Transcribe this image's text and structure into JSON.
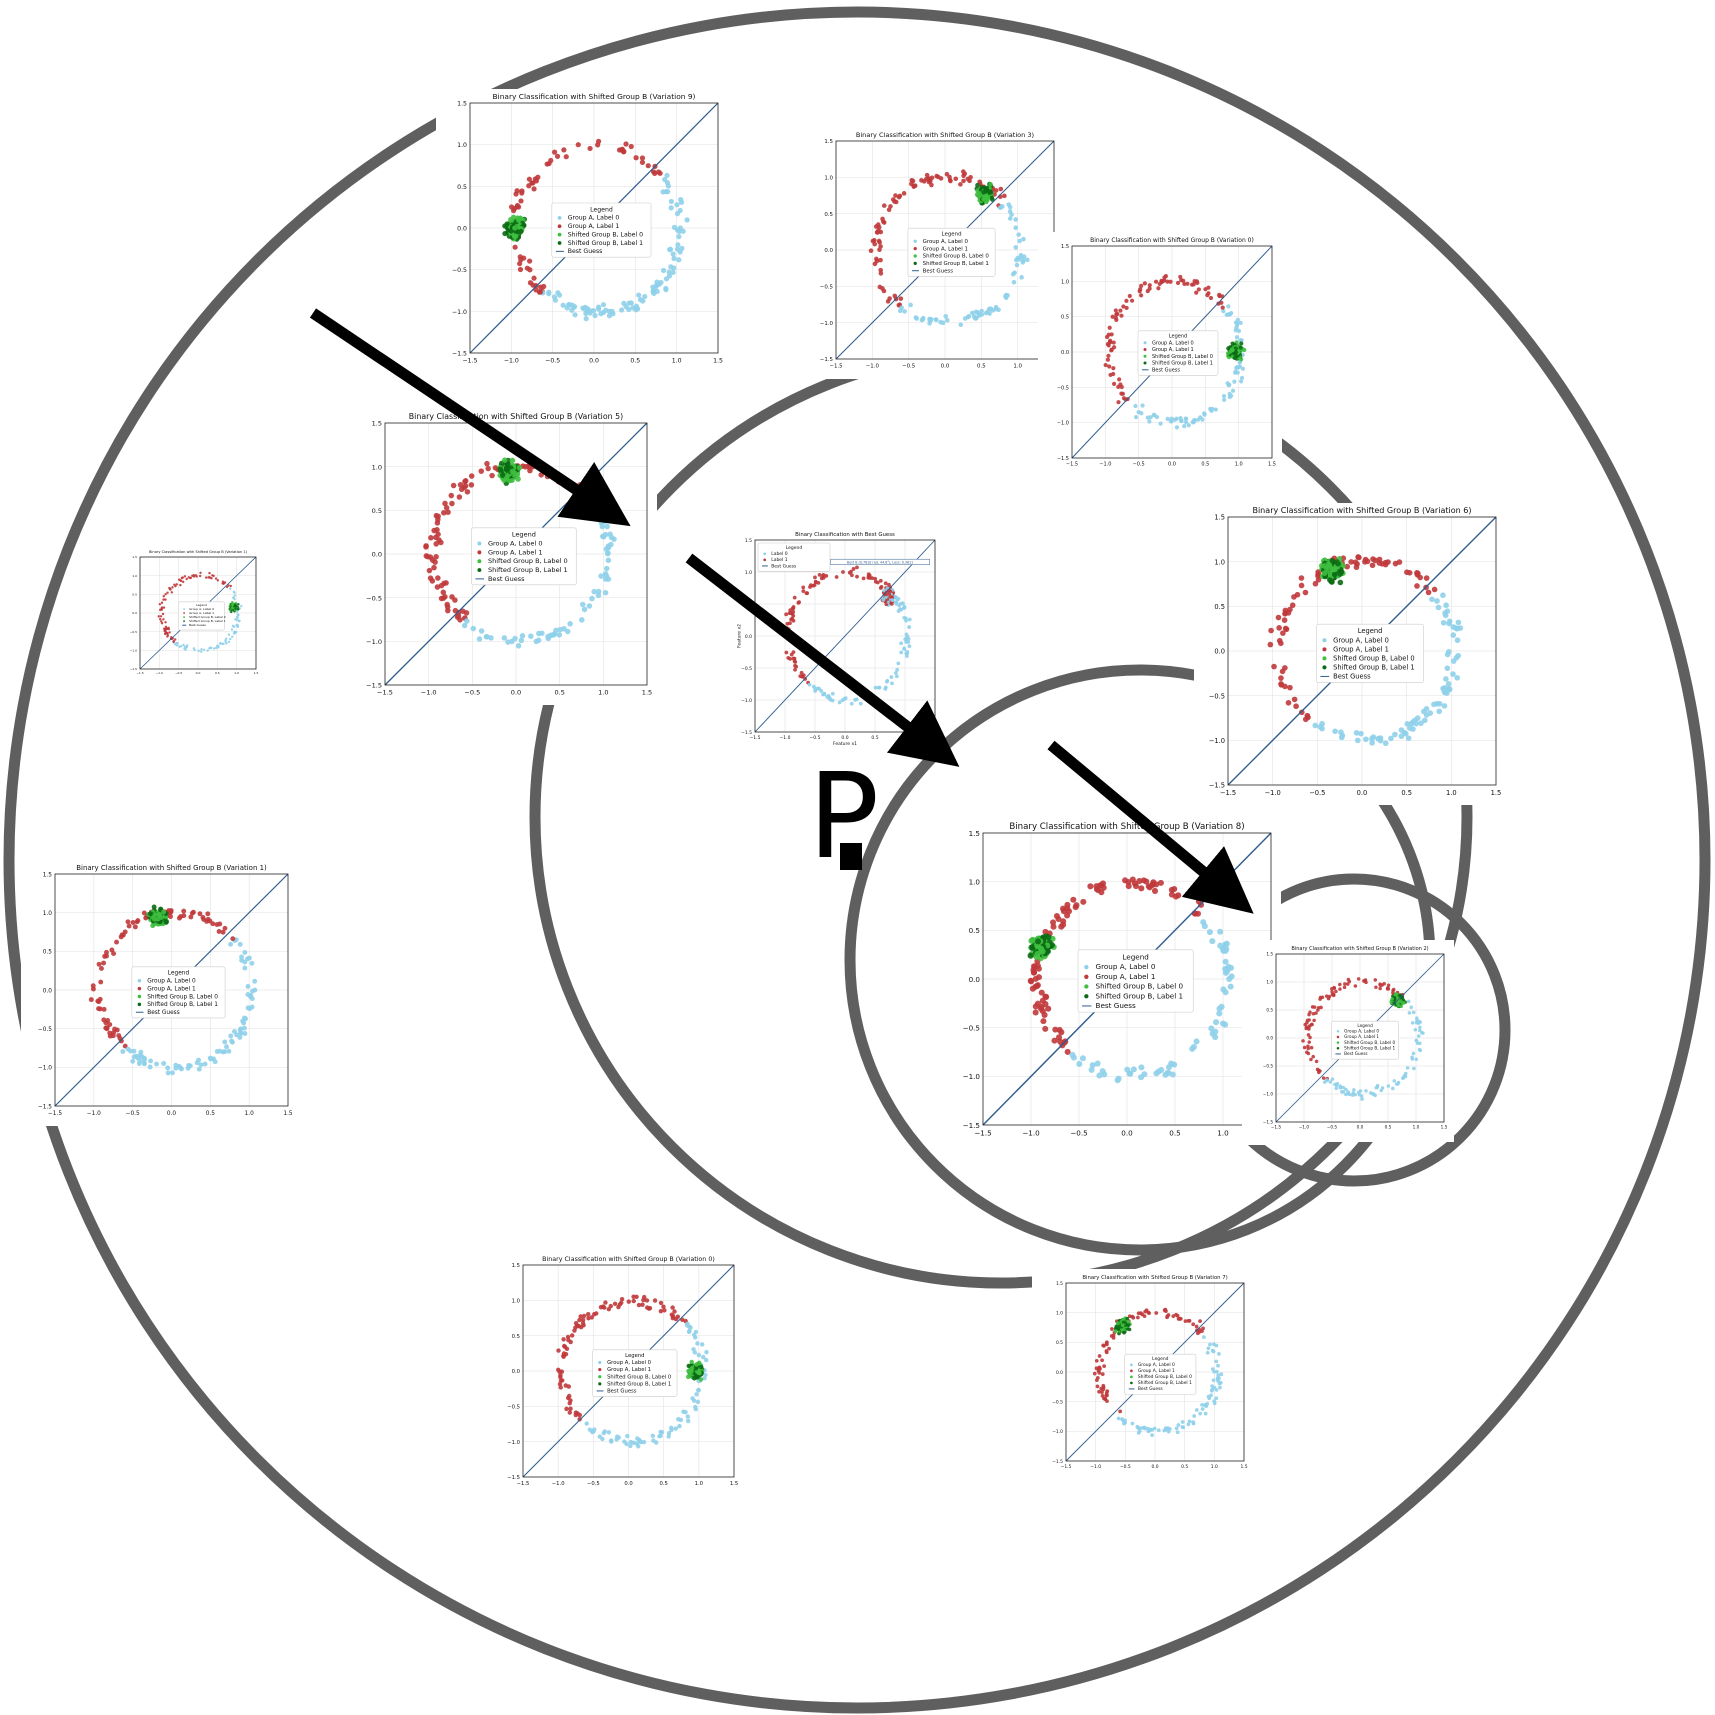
{
  "colors": {
    "ring": "#5f5f5f",
    "arrow": "#000000",
    "group_a_label0": "#8fd0ea",
    "group_a_label1": "#c0393b",
    "shifted_b_label0": "#3fbf3f",
    "shifted_b_label1": "#0b6b14",
    "best_guess": "#2f5d8f",
    "grid": "#e6e6e6"
  },
  "logo": {
    "letter": "P"
  },
  "legend_title": "Legend",
  "ticks": [
    "−1.5",
    "−1.0",
    "−0.5",
    "0.0",
    "0.5",
    "1.0",
    "1.5"
  ],
  "legend_entries": [
    "Group A, Label 0",
    "Group A, Label 1",
    "Shifted Group B, Label 0",
    "Shifted Group B, Label 1",
    "Best Guess"
  ],
  "best_legend_entries": [
    "Label 0",
    "Label 1",
    "Best Guess"
  ],
  "plots": [
    {
      "title": "Binary Classification with Shifted Group B (Variation 9)",
      "variation": 9,
      "cluster_angle_deg": 180
    },
    {
      "title": "Binary Classification with Shifted Group B (Variation 3)",
      "variation": 3,
      "cluster_angle_deg": 55
    },
    {
      "title": "Binary Classification with Shifted Group B (Variation 0)",
      "variation": 0,
      "cluster_angle_deg": 0
    },
    {
      "title": "Binary Classification with Shifted Group B (Variation 5)",
      "variation": 5,
      "cluster_angle_deg": 95
    },
    {
      "title": "Binary Classification with Shifted Group B (Variation 1)",
      "variation": 1,
      "cluster_angle_deg": 100
    },
    {
      "title": "Binary Classification with Best Guess",
      "variation": null,
      "cluster_angle_deg": 40,
      "xlabel": "Feature x1",
      "ylabel": "Feature x2",
      "annotation": "Best B (0.7810 rad, 44.8°), Loss: 0.3811"
    },
    {
      "title": "Binary Classification with Shifted Group B (Variation 6)",
      "variation": 6,
      "cluster_angle_deg": 110
    },
    {
      "title": "Binary Classification with Shifted Group B (Variation 1)",
      "variation": 1,
      "cluster_angle_deg": 10
    },
    {
      "title": "Binary Classification with Shifted Group B (Variation 8)",
      "variation": 8,
      "cluster_angle_deg": 160
    },
    {
      "title": "Binary Classification with Shifted Group B (Variation 2)",
      "variation": 2,
      "cluster_angle_deg": 45
    },
    {
      "title": "Binary Classification with Shifted Group B (Variation 0)",
      "variation": 0,
      "cluster_angle_deg": 0
    },
    {
      "title": "Binary Classification with Shifted Group B (Variation 7)",
      "variation": 7,
      "cluster_angle_deg": 125
    }
  ]
}
